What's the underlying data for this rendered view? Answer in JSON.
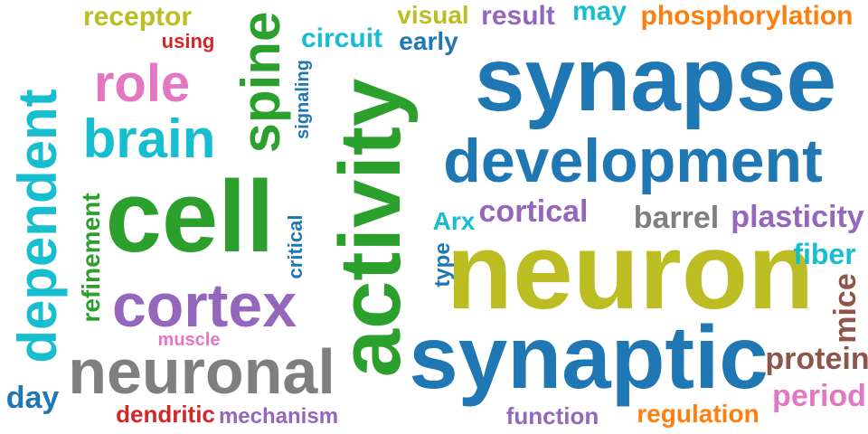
{
  "palette": {
    "blue": "#1f77b4",
    "olive": "#bcbd22",
    "cyan": "#17becf",
    "green": "#2ca02c",
    "purple": "#9467bd",
    "pink": "#e377c2",
    "orange": "#ff7f0e",
    "gray": "#7f7f7f",
    "red": "#d62728",
    "brown": "#8c564b"
  },
  "words": {
    "dependent": "dependent",
    "receptor": "receptor",
    "using": "using",
    "spine": "spine",
    "circuit": "circuit",
    "early": "early",
    "visual": "visual",
    "result": "result",
    "may": "may",
    "phosphorylation": "phosphorylation",
    "role": "role",
    "synapse": "synapse",
    "brain": "brain",
    "signaling": "signaling",
    "activity": "activity",
    "development": "development",
    "cell": "cell",
    "refinement": "refinement",
    "critical": "critical",
    "cortical": "cortical",
    "barrel": "barrel",
    "plasticity": "plasticity",
    "arx": "Arx",
    "neuron": "neuron",
    "fiber": "fiber",
    "type": "type",
    "cortex": "cortex",
    "mice": "mice",
    "muscle": "muscle",
    "synaptic": "synaptic",
    "neuronal": "neuronal",
    "protein": "protein",
    "day": "day",
    "period": "period",
    "dendritic": "dendritic",
    "mechanism": "mechanism",
    "function": "function",
    "regulation": "regulation"
  }
}
